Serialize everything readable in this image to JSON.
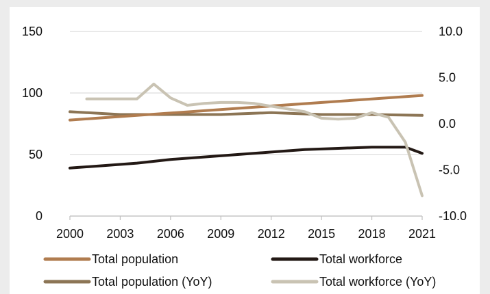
{
  "chart_data": {
    "type": "line",
    "x_ticks": [
      "2000",
      "2003",
      "2006",
      "2009",
      "2012",
      "2015",
      "2018",
      "2021"
    ],
    "y_left": {
      "ticks": [
        "150",
        "100",
        "50",
        "0"
      ],
      "range": [
        0,
        150
      ]
    },
    "y_right": {
      "ticks": [
        "10.0",
        "5.0",
        "0.0",
        "-5.0",
        "-10.0"
      ],
      "range": [
        -10,
        10
      ]
    },
    "grid": "horizontal",
    "legend_position": "bottom",
    "series": [
      {
        "name": "Total population",
        "axis": "left",
        "color": "#b07c4f",
        "x": [
          2000,
          2021
        ],
        "y": [
          78,
          98
        ]
      },
      {
        "name": "Total workforce",
        "axis": "left",
        "color": "#231915",
        "x": [
          2000,
          2002,
          2004,
          2006,
          2008,
          2010,
          2012,
          2014,
          2016,
          2018,
          2020,
          2021
        ],
        "y": [
          39,
          41,
          43,
          46,
          48,
          50,
          52,
          54,
          55,
          56,
          56,
          51
        ]
      },
      {
        "name": "Total population (YoY)",
        "axis": "right",
        "color": "#8c7555",
        "x": [
          2000,
          2003,
          2006,
          2009,
          2012,
          2015,
          2018,
          2021
        ],
        "y": [
          1.3,
          1.0,
          1.0,
          1.0,
          1.2,
          1.0,
          1.0,
          0.9
        ]
      },
      {
        "name": "Total workforce (YoY)",
        "axis": "right",
        "color": "#c9c3b3",
        "x": [
          2001,
          2002,
          2003,
          2004,
          2005,
          2006,
          2007,
          2008,
          2009,
          2010,
          2011,
          2012,
          2013,
          2014,
          2015,
          2016,
          2017,
          2018,
          2019,
          2020,
          2021
        ],
        "y": [
          2.7,
          2.7,
          2.7,
          2.7,
          4.3,
          2.8,
          2.0,
          2.2,
          2.3,
          2.3,
          2.2,
          1.9,
          1.6,
          1.3,
          0.6,
          0.5,
          0.6,
          1.2,
          0.7,
          -2.0,
          -7.8
        ]
      }
    ]
  },
  "legend": [
    {
      "label": "Total population",
      "color": "#b07c4f"
    },
    {
      "label": "Total workforce",
      "color": "#231915"
    },
    {
      "label": "Total population (YoY)",
      "color": "#8c7555"
    },
    {
      "label": "Total workforce (YoY)",
      "color": "#c9c3b3"
    }
  ]
}
